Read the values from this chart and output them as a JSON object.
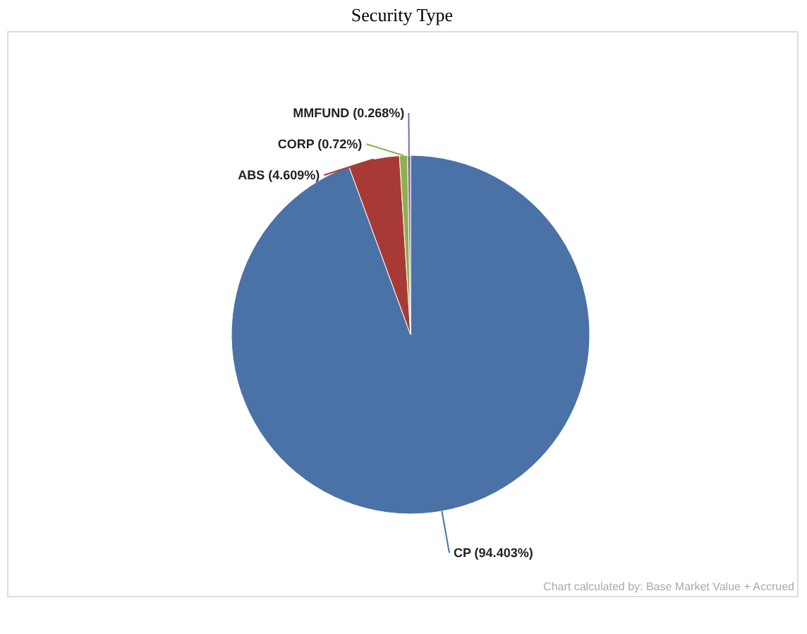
{
  "chart_data": {
    "type": "pie",
    "title": "Security Type",
    "categories": [
      "CP",
      "ABS",
      "CORP",
      "MMFUND"
    ],
    "values": [
      94.403,
      4.609,
      0.72,
      0.268
    ],
    "value_labels": [
      "(94.403%)",
      "(4.609%)",
      "(0.72%)",
      "(0.268%)"
    ],
    "colors": [
      "#4a72a6",
      "#a83a36",
      "#8fb04c",
      "#8068a6"
    ],
    "annotations": [
      "Chart calculated by: Base Market Value + Accrued"
    ],
    "legend": false
  }
}
